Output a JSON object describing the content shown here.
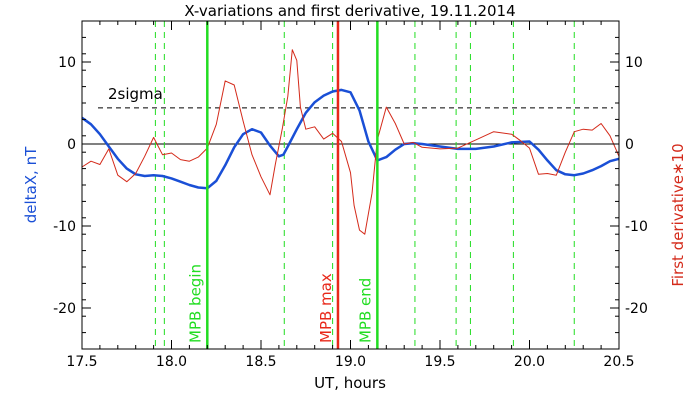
{
  "chart_data": {
    "type": "line",
    "title": "X-variations and first derivative, 19.11.2014",
    "xlabel": "UT, hours",
    "ylabel_left": "deltaX, nT",
    "ylabel_right": "First derivative∗10",
    "xlim": [
      17.5,
      20.5
    ],
    "ylim": [
      -25,
      15
    ],
    "x_ticks": [
      17.5,
      18.0,
      18.5,
      19.0,
      19.5,
      20.0,
      20.5
    ],
    "x_tick_labels": [
      "17.5",
      "18.0",
      "18.5",
      "19.0",
      "19.5",
      "20.0",
      "20.5"
    ],
    "y_ticks": [
      -20,
      -10,
      0,
      10
    ],
    "y_tick_labels": [
      "-20",
      "-10",
      "0",
      "10"
    ],
    "grid": false,
    "colors": {
      "deltaX": "#1a4fd6",
      "derivative": "#d42a1a",
      "begin_end": "#22dd22",
      "max": "#e8281a",
      "sigma": "#000000",
      "left_label": "#1a4fd6",
      "right_label": "#d42a1a"
    },
    "series": [
      {
        "key": "deltaX",
        "x": [
          17.5,
          17.55,
          17.6,
          17.65,
          17.7,
          17.75,
          17.8,
          17.85,
          17.9,
          17.95,
          18.0,
          18.05,
          18.1,
          18.15,
          18.2,
          18.25,
          18.3,
          18.35,
          18.4,
          18.45,
          18.5,
          18.55,
          18.6,
          18.625,
          18.65,
          18.7,
          18.75,
          18.8,
          18.85,
          18.9,
          18.95,
          19.0,
          19.05,
          19.1,
          19.15,
          19.2,
          19.25,
          19.3,
          19.35,
          19.4,
          19.5,
          19.6,
          19.7,
          19.8,
          19.9,
          20.0,
          20.05,
          20.1,
          20.15,
          20.2,
          20.25,
          20.3,
          20.35,
          20.4,
          20.45,
          20.5
        ],
        "y": [
          3.2,
          2.4,
          1.2,
          -0.3,
          -1.8,
          -3.0,
          -3.7,
          -3.9,
          -3.8,
          -3.9,
          -4.2,
          -4.6,
          -5.0,
          -5.3,
          -5.4,
          -4.5,
          -2.6,
          -0.4,
          1.2,
          1.8,
          1.4,
          -0.2,
          -1.5,
          -1.3,
          -0.3,
          1.8,
          3.8,
          5.1,
          5.9,
          6.4,
          6.6,
          6.3,
          4.1,
          0.3,
          -2.0,
          -1.6,
          -0.7,
          0.0,
          0.1,
          0.0,
          -0.3,
          -0.6,
          -0.6,
          -0.3,
          0.2,
          0.3,
          -0.7,
          -2.0,
          -3.2,
          -3.7,
          -3.8,
          -3.6,
          -3.2,
          -2.7,
          -2.1,
          -1.8
        ]
      },
      {
        "key": "derivative",
        "x": [
          17.5,
          17.55,
          17.6,
          17.65,
          17.7,
          17.75,
          17.8,
          17.85,
          17.9,
          17.95,
          18.0,
          18.05,
          18.1,
          18.15,
          18.2,
          18.25,
          18.3,
          18.35,
          18.4,
          18.45,
          18.5,
          18.55,
          18.58,
          18.62,
          18.65,
          18.675,
          18.7,
          18.72,
          18.75,
          18.8,
          18.85,
          18.9,
          18.95,
          19.0,
          19.02,
          19.05,
          19.08,
          19.12,
          19.15,
          19.2,
          19.25,
          19.3,
          19.35,
          19.4,
          19.5,
          19.6,
          19.7,
          19.8,
          19.9,
          19.95,
          20.0,
          20.05,
          20.1,
          20.15,
          20.2,
          20.25,
          20.3,
          20.35,
          20.4,
          20.45,
          20.5
        ],
        "y": [
          -2.8,
          -2.1,
          -2.5,
          -0.6,
          -3.8,
          -4.6,
          -3.6,
          -1.5,
          0.8,
          -1.3,
          -1.1,
          -1.9,
          -2.1,
          -1.6,
          -0.5,
          2.4,
          7.7,
          7.2,
          2.8,
          -1.3,
          -4.0,
          -6.2,
          -2.5,
          2.0,
          5.8,
          11.5,
          10.2,
          4.5,
          1.8,
          2.1,
          0.6,
          1.3,
          0.3,
          -3.5,
          -7.5,
          -10.5,
          -11.0,
          -6.0,
          0.5,
          4.5,
          2.5,
          0.0,
          0.2,
          -0.4,
          -0.6,
          -0.5,
          0.5,
          1.5,
          1.2,
          0.4,
          -0.5,
          -3.7,
          -3.6,
          -3.8,
          -1.0,
          1.5,
          1.8,
          1.7,
          2.5,
          1.0,
          -1.5
        ]
      }
    ],
    "sigma_level": 4.4,
    "annotations": {
      "sigma_label": "2sigma",
      "begin_label": "MPB begin",
      "max_label": "MPB max",
      "end_label": "MPB end"
    },
    "vlines_solid": [
      {
        "x": 18.2,
        "kind": "begin"
      },
      {
        "x": 18.93,
        "kind": "max"
      },
      {
        "x": 19.15,
        "kind": "end"
      }
    ],
    "vlines_dashed": [
      17.91,
      17.96,
      18.63,
      18.9,
      19.36,
      19.59,
      19.67,
      19.91,
      20.25
    ]
  }
}
